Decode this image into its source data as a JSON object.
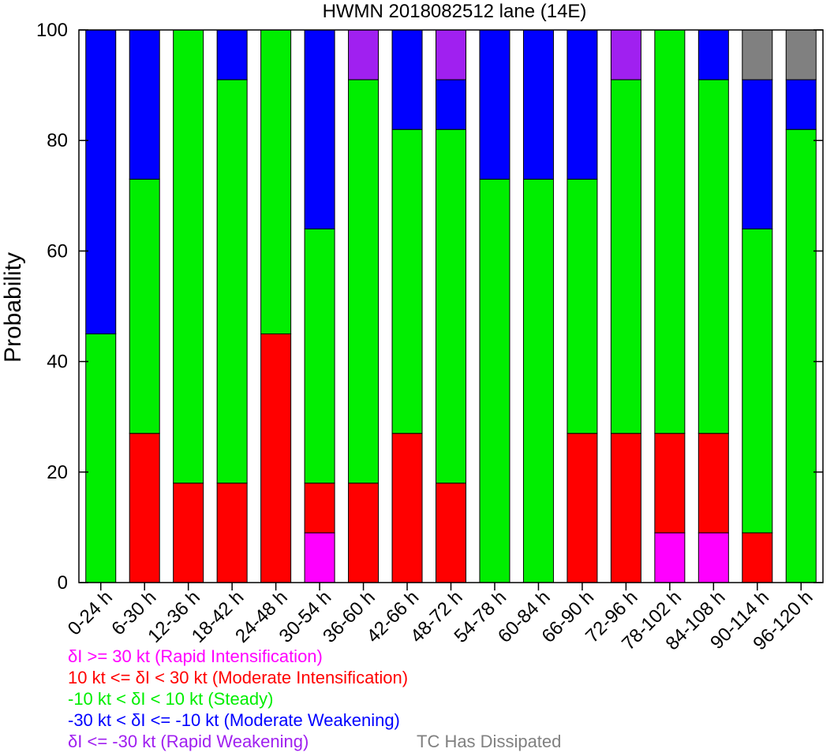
{
  "chart_data": {
    "type": "bar",
    "stacked": true,
    "title": "HWMN 2018082512 lane (14E)",
    "ylabel": "Probability",
    "xlabel": "",
    "ylim": [
      0,
      100
    ],
    "yticks": [
      0,
      20,
      40,
      60,
      80,
      100
    ],
    "categories": [
      "0-24 h",
      "6-30 h",
      "12-36 h",
      "18-42 h",
      "24-48 h",
      "30-54 h",
      "36-60 h",
      "42-66 h",
      "48-72 h",
      "54-78 h",
      "60-84 h",
      "66-90 h",
      "72-96 h",
      "78-102 h",
      "84-108 h",
      "90-114 h",
      "96-120 h"
    ],
    "series": [
      {
        "key": "ri",
        "color": "#ff00ff",
        "values": [
          0,
          0,
          0,
          0,
          0,
          9,
          0,
          0,
          0,
          0,
          0,
          0,
          0,
          9,
          9,
          0,
          0
        ]
      },
      {
        "key": "mi",
        "color": "#ff0000",
        "values": [
          0,
          27,
          18,
          18,
          45,
          9,
          18,
          27,
          18,
          0,
          0,
          27,
          27,
          18,
          18,
          9,
          0
        ]
      },
      {
        "key": "st",
        "color": "#00ee00",
        "values": [
          45,
          46,
          82,
          73,
          55,
          46,
          73,
          55,
          64,
          73,
          73,
          46,
          64,
          73,
          64,
          55,
          82
        ]
      },
      {
        "key": "mw",
        "color": "#0000ff",
        "values": [
          55,
          27,
          0,
          9,
          0,
          36,
          0,
          18,
          9,
          27,
          27,
          27,
          0,
          0,
          9,
          27,
          9
        ]
      },
      {
        "key": "rw",
        "color": "#a020f0",
        "values": [
          0,
          0,
          0,
          0,
          0,
          0,
          9,
          0,
          9,
          0,
          0,
          0,
          9,
          0,
          0,
          0,
          0
        ]
      },
      {
        "key": "dis",
        "color": "#808080",
        "values": [
          0,
          0,
          0,
          0,
          0,
          0,
          0,
          0,
          0,
          0,
          0,
          0,
          0,
          0,
          0,
          9,
          9
        ]
      }
    ]
  },
  "legend": {
    "ri": {
      "before": "",
      "after": "I >= 30 kt (Rapid Intensification)",
      "color": "#ff00ff"
    },
    "mi": {
      "before": "10 kt <= ",
      "after": "I < 30 kt (Moderate Intensification)",
      "color": "#ff0000"
    },
    "st": {
      "before": "-10 kt < ",
      "after": "I < 10 kt (Steady)",
      "color": "#00ee00"
    },
    "mw": {
      "before": "-30 kt < ",
      "after": "I <= -10 kt (Moderate Weakening)",
      "color": "#0000ff"
    },
    "rw": {
      "before": "",
      "after": "I <= -30 kt (Rapid Weakening)",
      "color": "#a020f0"
    },
    "dis": {
      "text": "TC Has Dissipated",
      "color": "#808080"
    },
    "delta_symbol": "δ"
  }
}
